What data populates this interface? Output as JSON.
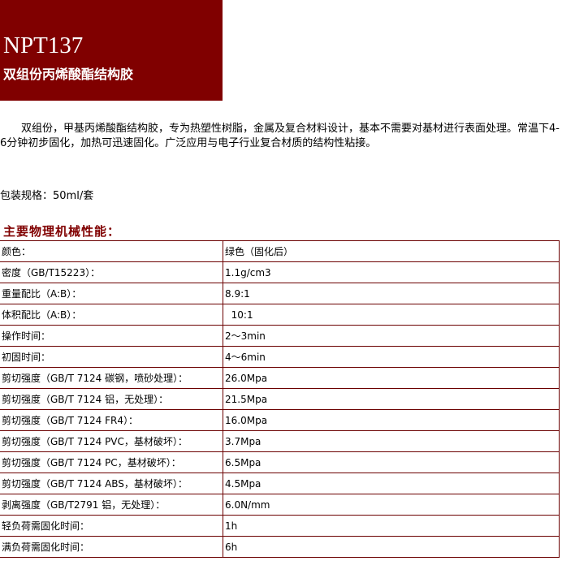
{
  "header": {
    "code": "NPT137",
    "name": "双组份丙烯酸酯结构胶"
  },
  "description": "　　双组份，甲基丙烯酸酯结构胶，专为热塑性树脂，金属及复合材料设计，基本不需要对基材进行表面处理。常温下4-6分钟初步固化，加热可迅速固化。广泛应用与电子行业复合材质的结构性粘接。",
  "packaging": "包装规格：50ml/套",
  "section_title": "主要物理机械性能：",
  "properties": [
    {
      "label": "颜色：",
      "value": "绿色（固化后）"
    },
    {
      "label": "密度（GB/T15223）：",
      "value": "1.1g/cm3"
    },
    {
      "label": "重量配比（A:B）：",
      "value": "8.9:1"
    },
    {
      "label": "体积配比（A:B）：",
      "value": "  10:1"
    },
    {
      "label": "操作时间：",
      "value": "2～3min"
    },
    {
      "label": "初固时间：",
      "value": "4～6min"
    },
    {
      "label": "剪切强度（GB/T 7124 碳钢，喷砂处理）：",
      "value": "26.0Mpa"
    },
    {
      "label": "剪切强度（GB/T 7124 铝，无处理）：",
      "value": "21.5Mpa"
    },
    {
      "label": "剪切强度（GB/T 7124 FR4）：",
      "value": "16.0Mpa"
    },
    {
      "label": "剪切强度（GB/T 7124 PVC，基材破坏）：",
      "value": "3.7Mpa"
    },
    {
      "label": "剪切强度（GB/T 7124 PC，基材破坏）：",
      "value": "6.5Mpa"
    },
    {
      "label": "剪切强度（GB/T 7124 ABS，基材破坏）：",
      "value": "4.5Mpa"
    },
    {
      "label": "剥离强度（GB/T2791 铝，无处理）：",
      "value": "6.0N/mm"
    },
    {
      "label": "轻负荷需固化时间：",
      "value": "1h"
    },
    {
      "label": "满负荷需固化时间：",
      "value": "6h"
    }
  ],
  "colors": {
    "brand": "#800000"
  }
}
